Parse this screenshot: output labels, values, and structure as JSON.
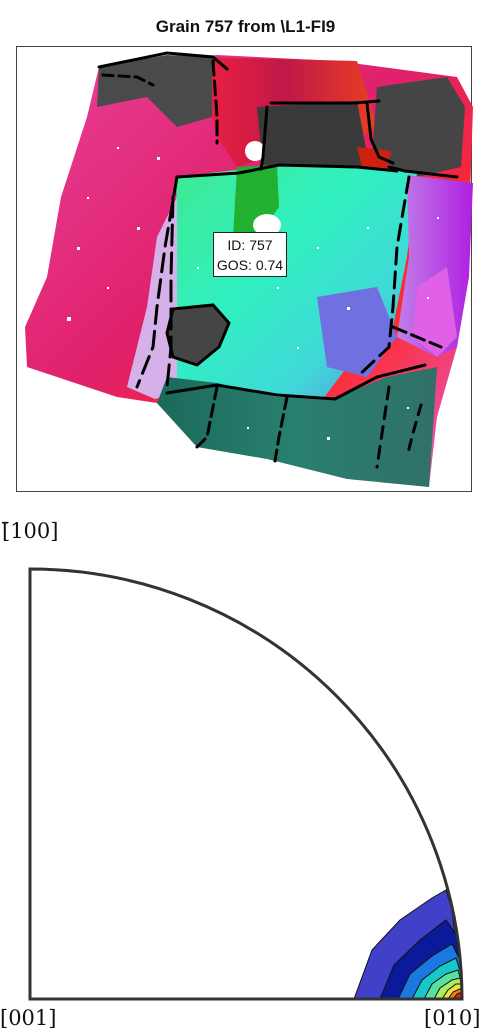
{
  "title": "Grain 757 from \\L1-FI9",
  "grain_label": {
    "id_line": "ID: 757",
    "gos_line": "GOS: 0.74"
  },
  "pole_figure": {
    "direction_top": "[̄100]",
    "direction_bottom_left": "[001]",
    "direction_bottom_right": "[010]",
    "contour_colors": [
      "#4040c8",
      "#0a1a9a",
      "#1a78e0",
      "#18c8c8",
      "#58e0a0",
      "#a8ec60",
      "#f0e040",
      "#f08020",
      "#e02010"
    ]
  }
}
